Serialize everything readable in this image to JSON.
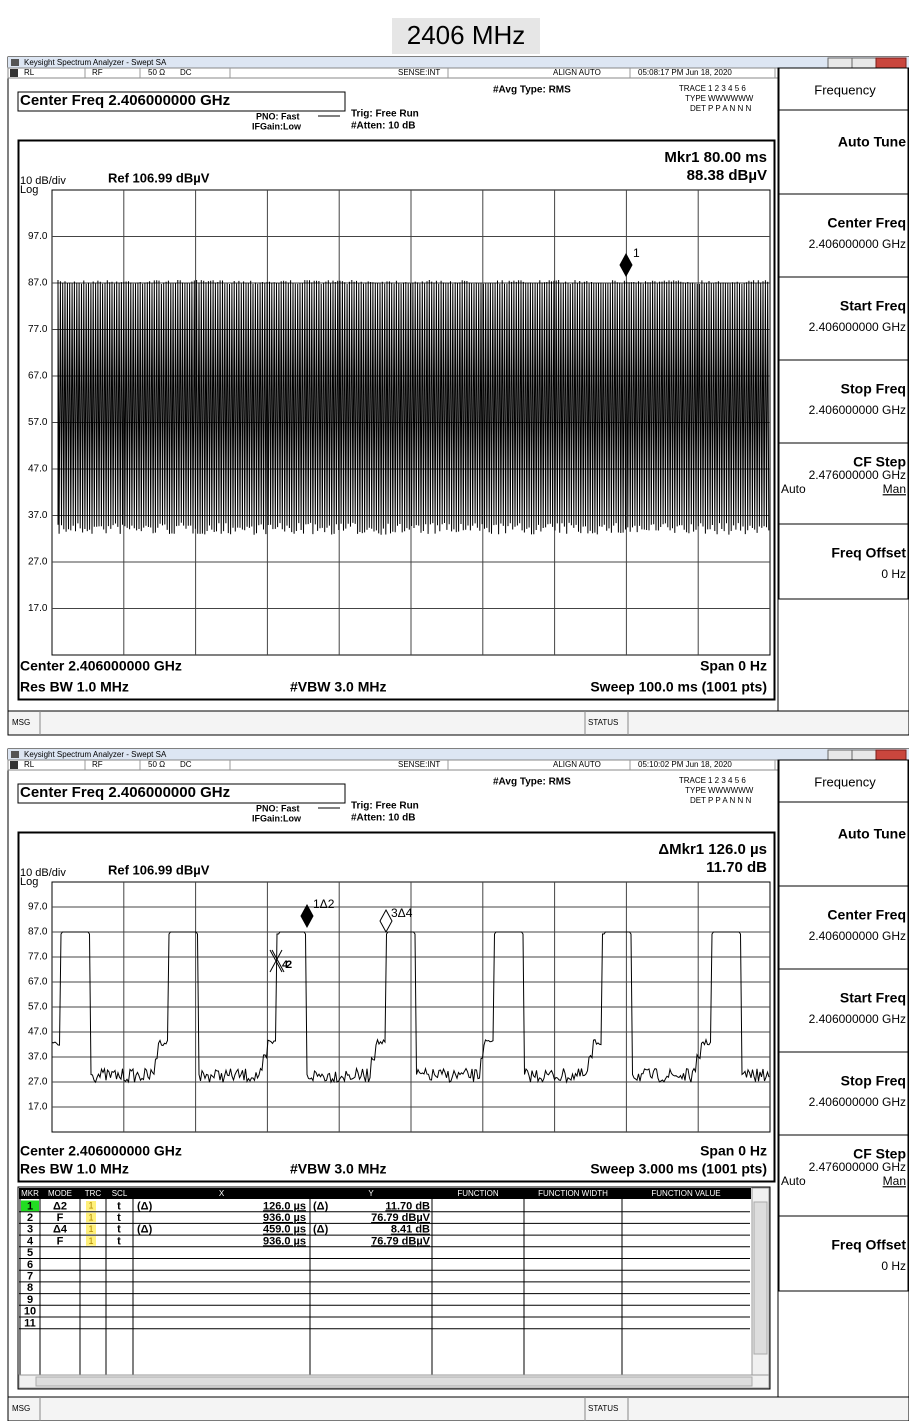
{
  "page_title": "2406 MHz",
  "windows": [
    {
      "app_title": "Keysight Spectrum Analyzer - Swept SA",
      "status": [
        "RL",
        "RF",
        "50 Ω",
        "DC",
        "SENSE:INT",
        "ALIGN AUTO",
        "05:08:17 PM Jun 18, 2020"
      ],
      "center_freq": "Center Freq 2.406000000 GHz",
      "pno": "PNO: Fast",
      "ifgain": "IFGain:Low",
      "trig": "Trig: Free Run",
      "atten": "#Atten: 10 dB",
      "avg_type": "#Avg Type: RMS",
      "trace_rows": [
        [
          "TRACE",
          "1 2 3 4 5 6"
        ],
        [
          "TYPE",
          "WWWWWW"
        ],
        [
          "DET",
          "P P A N N N"
        ]
      ],
      "marker_readout": [
        "Mkr1 80.00 ms",
        "88.38 dBµV"
      ],
      "scale": "10 dB/div",
      "ref": "Ref 106.99 dBµV",
      "log": "Log",
      "y_labels": [
        "97.0",
        "87.0",
        "77.0",
        "67.0",
        "57.0",
        "47.0",
        "37.0",
        "27.0",
        "17.0"
      ],
      "plot_markers": [
        "1"
      ],
      "footer": {
        "center": "Center 2.406000000 GHz",
        "span": "Span 0 Hz",
        "res_bw": "Res BW 1.0 MHz",
        "vbw": "#VBW 3.0 MHz",
        "sweep": "Sweep  100.0 ms (1001 pts)"
      },
      "softkeys": [
        {
          "label": "Frequency"
        },
        {
          "label": "Auto Tune"
        },
        {
          "label": "Center Freq",
          "value": "2.406000000 GHz"
        },
        {
          "label": "Start Freq",
          "value": "2.406000000 GHz"
        },
        {
          "label": "Stop Freq",
          "value": "2.406000000 GHz"
        },
        {
          "label": "CF Step",
          "value": "2.476000000 GHz",
          "options": [
            "Auto",
            "Man"
          ]
        },
        {
          "label": "Freq Offset",
          "value": "0 Hz"
        }
      ],
      "msg": "MSG",
      "status_label": "STATUS"
    },
    {
      "app_title": "Keysight Spectrum Analyzer - Swept SA",
      "status": [
        "RL",
        "RF",
        "50 Ω",
        "DC",
        "SENSE:INT",
        "ALIGN AUTO",
        "05:10:02 PM Jun 18, 2020"
      ],
      "center_freq": "Center Freq 2.406000000 GHz",
      "pno": "PNO: Fast",
      "ifgain": "IFGain:Low",
      "trig": "Trig: Free Run",
      "atten": "#Atten: 10 dB",
      "avg_type": "#Avg Type: RMS",
      "trace_rows": [
        [
          "TRACE",
          "1 2 3 4 5 6"
        ],
        [
          "TYPE",
          "WWWWWW"
        ],
        [
          "DET",
          "P P A N N N"
        ]
      ],
      "marker_readout": [
        "ΔMkr1 126.0 µs",
        "11.70 dB"
      ],
      "scale": "10 dB/div",
      "ref": "Ref 106.99 dBµV",
      "log": "Log",
      "y_labels": [
        "97.0",
        "87.0",
        "77.0",
        "67.0",
        "57.0",
        "47.0",
        "37.0",
        "27.0",
        "17.0"
      ],
      "plot_markers": [
        "1Δ2",
        "3Δ4",
        "4",
        "2"
      ],
      "footer": {
        "center": "Center 2.406000000 GHz",
        "span": "Span 0 Hz",
        "res_bw": "Res BW 1.0 MHz",
        "vbw": "#VBW 3.0 MHz",
        "sweep": "Sweep  3.000 ms (1001 pts)"
      },
      "softkeys": [
        {
          "label": "Frequency"
        },
        {
          "label": "Auto Tune"
        },
        {
          "label": "Center Freq",
          "value": "2.406000000 GHz"
        },
        {
          "label": "Start Freq",
          "value": "2.406000000 GHz"
        },
        {
          "label": "Stop Freq",
          "value": "2.406000000 GHz"
        },
        {
          "label": "CF Step",
          "value": "2.476000000 GHz",
          "options": [
            "Auto",
            "Man"
          ]
        },
        {
          "label": "Freq Offset",
          "value": "0 Hz"
        }
      ],
      "marker_table": {
        "headers": [
          "MKR",
          "MODE",
          "TRC",
          "SCL",
          "X",
          "Y",
          "FUNCTION",
          "FUNCTION WIDTH",
          "FUNCTION VALUE"
        ],
        "rows": [
          {
            "mkr": "1",
            "mode": "Δ2",
            "trc": "1",
            "scl": "t",
            "x_ref": "(Δ)",
            "x": "126.0 µs",
            "y_ref": "(Δ)",
            "y": "11.70 dB"
          },
          {
            "mkr": "2",
            "mode": "F",
            "trc": "1",
            "scl": "t",
            "x": "936.0 µs",
            "y": "76.79 dBµV"
          },
          {
            "mkr": "3",
            "mode": "Δ4",
            "trc": "1",
            "scl": "t",
            "x_ref": "(Δ)",
            "x": "459.0 µs",
            "y_ref": "(Δ)",
            "y": "8.41 dB"
          },
          {
            "mkr": "4",
            "mode": "F",
            "trc": "1",
            "scl": "t",
            "x": "936.0 µs",
            "y": "76.79 dBµV"
          },
          {
            "mkr": "5"
          },
          {
            "mkr": "6"
          },
          {
            "mkr": "7"
          },
          {
            "mkr": "8"
          },
          {
            "mkr": "9"
          },
          {
            "mkr": "10"
          },
          {
            "mkr": "11"
          }
        ]
      },
      "msg": "MSG",
      "status_label": "STATUS"
    }
  ]
}
